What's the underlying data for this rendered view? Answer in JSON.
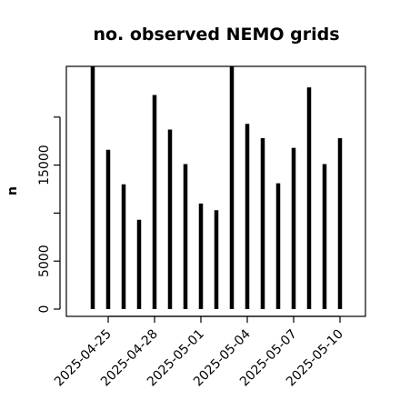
{
  "chart_data": {
    "type": "bar",
    "title": "no. observed NEMO grids",
    "xlabel": "",
    "ylabel": "n",
    "x": [
      "2025-04-24",
      "2025-04-25",
      "2025-04-26",
      "2025-04-27",
      "2025-04-28",
      "2025-04-29",
      "2025-04-30",
      "2025-05-01",
      "2025-05-02",
      "2025-05-03",
      "2025-05-04",
      "2025-05-05",
      "2025-05-06",
      "2025-05-07",
      "2025-05-08",
      "2025-05-09",
      "2025-05-10"
    ],
    "values": [
      25500,
      16600,
      13000,
      9300,
      22300,
      18700,
      15100,
      11000,
      10300,
      25500,
      19300,
      17800,
      13100,
      16800,
      23100,
      15100,
      17800
    ],
    "xticks": [
      "2025-04-25",
      "2025-04-28",
      "2025-05-01",
      "2025-05-04",
      "2025-05-07",
      "2025-05-10"
    ],
    "yticks": [
      0,
      5000,
      15000
    ],
    "ylim": [
      -500,
      25000
    ],
    "grid": false,
    "color": "#000000"
  }
}
